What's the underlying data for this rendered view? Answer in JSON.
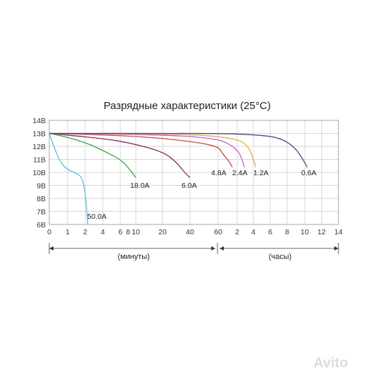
{
  "chart_data": {
    "type": "line",
    "title": "Разрядные характеристики (25°C)",
    "y_ticks": [
      "14В",
      "13В",
      "12В",
      "11В",
      "10В",
      "9В",
      "8В",
      "7В",
      "6В"
    ],
    "ylim": [
      6,
      14
    ],
    "x_ticks": [
      "0",
      "1",
      "2",
      "4",
      "6",
      "8",
      "10",
      "20",
      "40",
      "60",
      "2",
      "4",
      "6",
      "8",
      "10",
      "12",
      "14"
    ],
    "x_ranges": [
      {
        "label": "(минуты)"
      },
      {
        "label": "(часы)"
      }
    ],
    "grid": true,
    "series": [
      {
        "name": "50.0A",
        "color": "#5bbdd6",
        "points": [
          [
            0,
            13.0
          ],
          [
            0.3,
            11.8
          ],
          [
            0.6,
            10.8
          ],
          [
            1.0,
            10.2
          ],
          [
            1.4,
            10.0
          ],
          [
            1.8,
            9.7
          ],
          [
            2.0,
            8.6
          ],
          [
            2.3,
            6.0
          ]
        ]
      },
      {
        "name": "18.0A",
        "color": "#3f9e3f",
        "points": [
          [
            0,
            13.0
          ],
          [
            1.0,
            12.7
          ],
          [
            2.0,
            12.3
          ],
          [
            4.0,
            11.7
          ],
          [
            6.0,
            11.0
          ],
          [
            8.0,
            10.4
          ],
          [
            10.0,
            9.6
          ]
        ]
      },
      {
        "name": "6.0A",
        "color": "#8a2a5c",
        "points": [
          [
            0,
            13.0
          ],
          [
            4.0,
            12.6
          ],
          [
            8.0,
            12.3
          ],
          [
            20.0,
            11.6
          ],
          [
            30.0,
            10.8
          ],
          [
            36.0,
            10.0
          ],
          [
            40.0,
            9.6
          ]
        ]
      },
      {
        "name": "4.8A",
        "color": "#d44040",
        "points": [
          [
            0,
            13.0
          ],
          [
            10.0,
            12.8
          ],
          [
            40.0,
            12.4
          ],
          [
            62.0,
            12.0
          ],
          [
            1.2,
            11.5
          ],
          [
            1.6,
            10.8
          ],
          [
            1.75,
            10.4
          ]
        ]
      },
      {
        "name": "2.4A",
        "color": "#c060c0",
        "points": [
          [
            0,
            13.0
          ],
          [
            20.0,
            12.9
          ],
          [
            60.0,
            12.6
          ],
          [
            1.8,
            12.0
          ],
          [
            2.4,
            11.4
          ],
          [
            2.9,
            10.4
          ]
        ]
      },
      {
        "name": "1.2A",
        "color": "#e8a93a",
        "points": [
          [
            0,
            13.0
          ],
          [
            40.0,
            12.95
          ],
          [
            2.0,
            12.6
          ],
          [
            3.4,
            12.0
          ],
          [
            3.9,
            11.2
          ],
          [
            4.3,
            10.4
          ]
        ]
      },
      {
        "name": "0.6A",
        "color": "#4a4a7a",
        "points": [
          [
            0,
            13.0
          ],
          [
            60.0,
            13.0
          ],
          [
            4.0,
            12.9
          ],
          [
            7.0,
            12.7
          ],
          [
            8.8,
            12.0
          ],
          [
            9.8,
            11.0
          ],
          [
            10.3,
            10.4
          ]
        ]
      }
    ]
  },
  "watermark": "Avito"
}
